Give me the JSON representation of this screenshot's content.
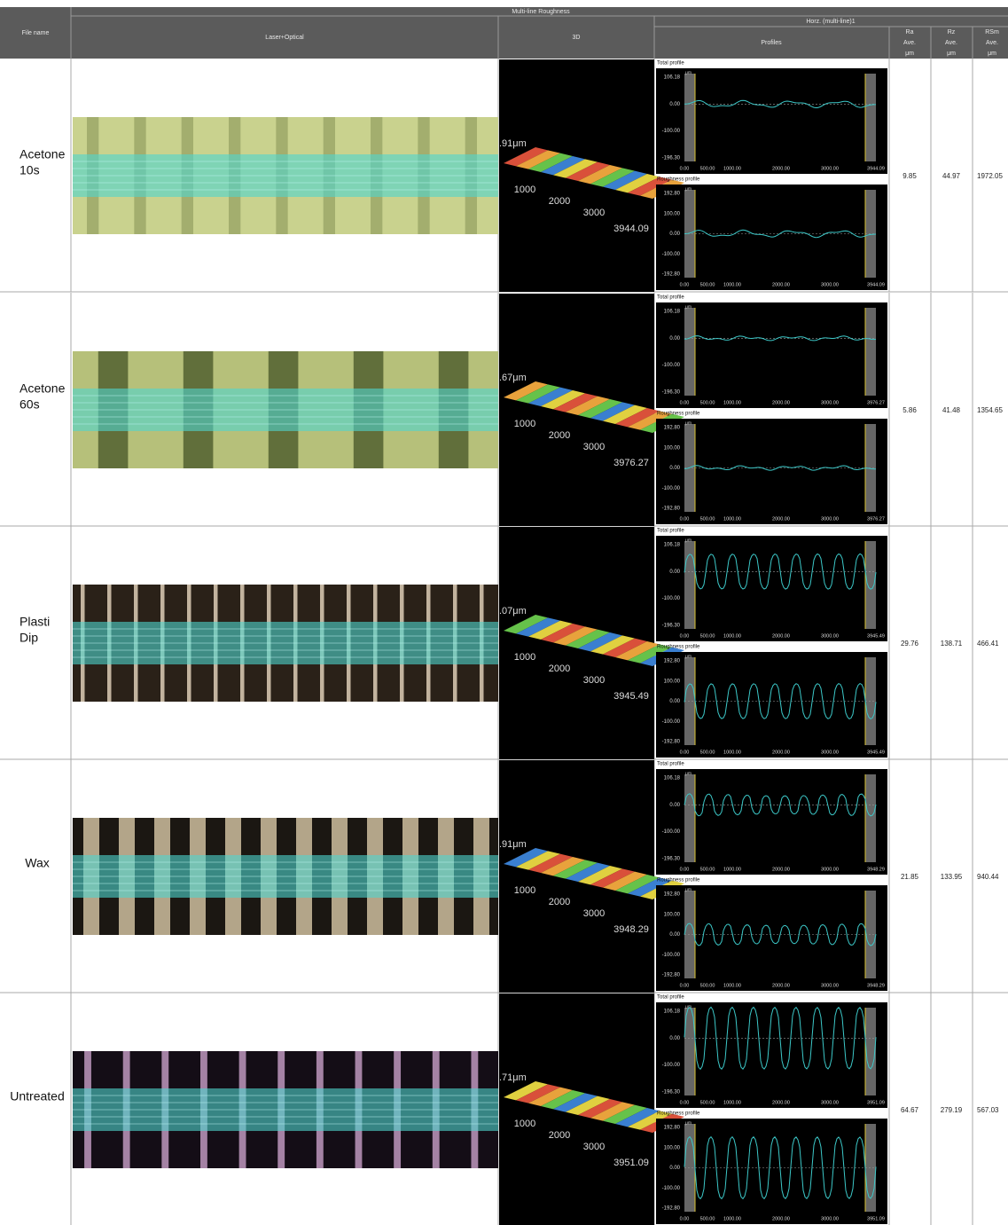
{
  "header": {
    "group": "Multi-line Roughness",
    "file_name": "File name",
    "laser": "Laser+Optical",
    "three_d": "3D",
    "horz": "Horz. (multi-line)1",
    "profiles": "Profiles",
    "columns": [
      {
        "name": "Ra",
        "stat": "Ave.",
        "unit": "μm"
      },
      {
        "name": "Rz",
        "stat": "Ave.",
        "unit": "μm"
      },
      {
        "name": "RSm",
        "stat": "Ave.",
        "unit": "μm"
      }
    ]
  },
  "profile_labels": {
    "total": "Total profile",
    "roughness": "Roughness profile",
    "unit": "μm",
    "total_yticks": [
      "106.18",
      "0.00",
      "-100.00",
      "-196.30"
    ],
    "roughness_yticks": [
      "192.80",
      "100.00",
      "0.00",
      "-100.00",
      "-192.80"
    ],
    "xticks": [
      "0.00",
      "500.00",
      "1000.00",
      "2000.00",
      "3000.00"
    ]
  },
  "three_d_ticks": [
    "1000",
    "2000",
    "3000"
  ],
  "rows": [
    {
      "name_lines": [
        "Acetone",
        "10s"
      ],
      "height_label": ".91μm",
      "length": "3944.09",
      "values": [
        "9.85",
        "44.97",
        "1972.05"
      ]
    },
    {
      "name_lines": [
        "Acetone",
        "60s"
      ],
      "height_label": ".67μm",
      "length": "3976.27",
      "values": [
        "5.86",
        "41.48",
        "1354.65"
      ]
    },
    {
      "name_lines": [
        "Plasti",
        "Dip"
      ],
      "height_label": ".07μm",
      "length": "3945.49",
      "values": [
        "29.76",
        "138.71",
        "466.41"
      ]
    },
    {
      "name_lines": [
        "Wax"
      ],
      "height_label": ".91μm",
      "length": "3948.29",
      "values": [
        "21.85",
        "133.95",
        "940.44"
      ]
    },
    {
      "name_lines": [
        "Untreated"
      ],
      "height_label": ".71μm",
      "length": "3951.09",
      "values": [
        "64.67",
        "279.19",
        "567.03"
      ]
    }
  ]
}
